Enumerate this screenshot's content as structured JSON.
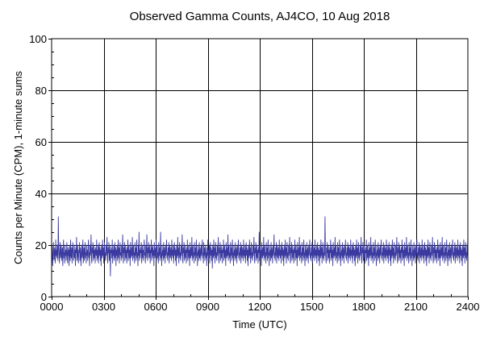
{
  "chart_data": {
    "type": "line",
    "title": "Observed Gamma Counts, AJ4CO, 10 Aug 2018",
    "xlabel": "Time (UTC)",
    "ylabel": "Counts per Minute (CPM), 1-minute sums",
    "xlim": [
      0,
      1440
    ],
    "ylim": [
      0,
      100
    ],
    "x_ticks": [
      {
        "value": 0,
        "label": "0000"
      },
      {
        "value": 180,
        "label": "0300"
      },
      {
        "value": 360,
        "label": "0600"
      },
      {
        "value": 540,
        "label": "0900"
      },
      {
        "value": 720,
        "label": "1200"
      },
      {
        "value": 900,
        "label": "1500"
      },
      {
        "value": 1080,
        "label": "1800"
      },
      {
        "value": 1260,
        "label": "2100"
      },
      {
        "value": 1440,
        "label": "2400"
      }
    ],
    "y_ticks": [
      {
        "value": 0,
        "label": "0"
      },
      {
        "value": 20,
        "label": "20"
      },
      {
        "value": 40,
        "label": "40"
      },
      {
        "value": 60,
        "label": "60"
      },
      {
        "value": 80,
        "label": "80"
      },
      {
        "value": 100,
        "label": "100"
      }
    ],
    "grid": true,
    "series": [
      {
        "color": "#3a3aa0",
        "x_start": 0,
        "x_step": 2,
        "values": [
          17,
          20,
          15,
          12,
          18,
          21,
          16,
          14,
          19,
          17,
          13,
          22,
          16,
          18,
          15,
          20,
          17,
          14,
          31,
          19,
          16,
          13,
          18,
          21,
          15,
          17,
          20,
          14,
          16,
          19,
          12,
          18,
          22,
          15,
          17,
          13,
          20,
          16,
          18,
          14,
          17,
          21,
          15,
          13,
          19,
          16,
          18,
          12,
          20,
          17,
          14,
          22,
          16,
          15,
          19,
          13,
          18,
          21,
          17,
          14,
          16,
          20,
          15,
          18,
          12,
          19,
          17,
          23,
          14,
          16,
          20,
          15,
          13,
          18,
          17,
          21,
          14,
          19,
          16,
          12,
          18,
          20,
          15,
          17,
          22,
          13,
          16,
          19,
          14,
          18,
          21,
          15,
          17,
          13,
          20,
          16,
          18,
          14,
          19,
          22,
          15,
          17,
          12,
          20,
          16,
          18,
          24,
          15,
          13,
          19,
          17,
          21,
          14,
          16,
          20,
          15,
          18,
          13,
          19,
          17,
          16,
          22,
          14,
          18,
          15,
          20,
          13,
          17,
          21,
          16,
          19,
          14,
          18,
          12,
          20,
          17,
          15,
          22,
          16,
          19,
          13,
          18,
          21,
          15,
          17,
          14,
          20,
          16,
          18,
          23,
          15,
          13,
          19,
          17,
          21,
          14,
          16,
          20,
          8,
          18,
          17,
          19,
          15,
          22,
          13,
          18,
          16,
          20,
          14,
          17,
          21,
          15,
          19,
          12,
          18,
          16,
          20,
          14,
          17,
          22,
          15,
          19,
          13,
          18,
          21,
          16,
          17,
          14,
          20,
          15,
          18,
          24,
          16,
          13,
          19,
          17,
          21,
          14,
          16,
          20,
          15,
          18,
          13,
          19,
          17,
          22,
          14,
          16,
          20,
          15,
          18,
          12,
          21,
          17,
          15,
          19,
          16,
          23,
          14,
          18,
          20,
          15,
          17,
          13,
          21,
          16,
          19,
          14,
          18,
          22,
          15,
          17,
          12,
          20,
          16,
          25,
          14,
          18,
          15,
          19,
          17,
          21,
          13,
          16,
          20,
          15,
          18,
          14,
          19,
          22,
          16,
          17,
          13,
          20,
          15,
          18,
          24,
          16,
          14,
          19,
          17,
          21,
          15,
          16,
          20,
          13,
          18,
          17,
          22,
          14,
          19,
          15,
          20,
          16,
          18,
          12,
          21,
          17,
          15,
          19,
          16,
          22,
          14,
          18,
          20,
          15,
          17,
          13,
          21,
          16,
          19,
          14,
          18,
          25,
          15,
          17,
          12,
          20,
          16,
          18,
          14,
          21,
          15,
          19,
          17,
          13,
          20,
          16,
          18,
          22,
          15,
          17,
          14,
          19,
          16,
          21,
          13,
          18,
          20,
          15,
          17,
          19,
          14,
          22,
          16,
          18,
          15,
          20,
          13,
          17,
          21,
          16,
          19,
          14,
          18,
          12,
          20,
          17,
          15,
          23,
          16,
          19,
          13,
          18,
          21,
          15,
          17,
          14,
          20,
          16,
          18,
          24,
          15,
          13,
          19,
          17,
          21,
          14,
          16,
          20,
          15,
          18,
          13,
          19,
          17,
          22,
          14,
          16,
          20,
          15,
          18,
          12,
          21,
          17,
          15,
          19,
          16,
          23,
          14,
          18,
          20,
          15,
          17,
          13,
          21,
          16,
          19,
          14,
          18,
          22,
          15,
          17,
          12,
          20,
          16,
          18,
          14,
          21,
          15,
          19,
          17,
          14,
          20,
          16,
          18,
          22,
          15,
          17,
          13,
          21,
          16,
          19,
          14,
          18,
          20,
          15,
          17,
          12,
          19,
          16,
          22,
          14,
          18,
          15,
          20,
          13,
          17,
          21,
          16,
          19,
          14,
          18,
          11,
          20,
          17,
          15,
          22,
          16,
          19,
          13,
          18,
          21,
          15,
          17,
          14,
          20,
          16,
          18,
          23,
          15,
          13,
          19,
          17,
          21,
          14,
          16,
          20,
          15,
          18,
          13,
          19,
          17,
          22,
          14,
          16,
          20,
          15,
          18,
          12,
          21,
          17,
          15,
          19,
          16,
          24,
          14,
          18,
          20,
          15,
          17,
          13,
          21,
          16,
          19,
          14,
          18,
          22,
          15,
          17,
          12,
          20,
          16,
          18,
          14,
          21,
          15,
          19,
          17,
          13,
          20,
          16,
          18,
          22,
          15,
          17,
          14,
          19,
          16,
          21,
          13,
          18,
          20,
          15,
          17,
          19,
          14,
          22,
          16,
          18,
          15,
          20,
          13,
          17,
          21,
          16,
          19,
          14,
          18,
          12,
          20,
          17,
          15,
          22,
          16,
          19,
          13,
          18,
          21,
          15,
          17,
          14,
          20,
          16,
          18,
          23,
          15,
          13,
          19,
          17,
          21,
          14,
          16,
          20,
          15,
          18,
          13,
          19,
          17,
          25,
          14,
          16,
          20,
          15,
          18,
          12,
          21,
          17,
          15,
          19,
          16,
          23,
          14,
          18,
          20,
          15,
          17,
          13,
          21,
          16,
          19,
          14,
          18,
          22,
          15,
          17,
          12,
          20,
          16,
          18,
          14,
          21,
          15,
          19,
          17,
          13,
          20,
          16,
          18,
          24,
          15,
          17,
          14,
          19,
          16,
          21,
          13,
          18,
          20,
          15,
          17,
          19,
          14,
          22,
          16,
          18,
          15,
          20,
          13,
          17,
          21,
          16,
          19,
          14,
          18,
          12,
          20,
          17,
          15,
          22,
          16,
          19,
          13,
          18,
          21,
          15,
          17,
          14,
          20,
          16,
          18,
          23,
          15,
          13,
          19,
          17,
          21,
          14,
          16,
          20,
          15,
          18,
          13,
          19,
          17,
          22,
          14,
          16,
          20,
          15,
          18,
          12,
          21,
          17,
          15,
          19,
          16,
          23,
          14,
          18,
          20,
          15,
          17,
          13,
          21,
          16,
          19,
          14,
          18,
          22,
          15,
          17,
          12,
          20,
          16,
          18,
          14,
          21,
          15,
          19,
          17,
          13,
          20,
          16,
          18,
          22,
          15,
          17,
          14,
          19,
          16,
          21,
          13,
          18,
          20,
          15,
          17,
          19,
          14,
          22,
          16,
          18,
          15,
          20,
          13,
          17,
          21,
          16,
          19,
          14,
          18,
          12,
          20,
          17,
          15,
          22,
          16,
          19,
          13,
          18,
          21,
          15,
          17,
          14,
          20,
          16,
          31,
          18,
          15,
          13,
          19,
          17,
          21,
          14,
          16,
          20,
          15,
          18,
          13,
          19,
          17,
          22,
          14,
          16,
          20,
          15,
          18,
          12,
          21,
          17,
          15,
          19,
          16,
          23,
          14,
          18,
          20,
          15,
          17,
          13,
          21,
          16,
          19,
          14,
          18,
          22,
          15,
          17,
          12,
          20,
          16,
          18,
          14,
          21,
          15,
          19,
          17,
          13,
          20,
          16,
          18,
          22,
          15,
          17,
          14,
          19,
          16,
          21,
          13,
          18,
          20,
          15,
          17,
          19,
          14,
          22,
          16,
          18,
          15,
          20,
          13,
          17,
          21,
          16,
          19,
          14,
          18,
          12,
          20,
          17,
          15,
          22,
          16,
          19,
          13,
          18,
          21,
          15,
          17,
          14,
          20,
          16,
          18,
          23,
          15,
          13,
          19,
          17,
          21,
          14,
          16,
          20,
          15,
          18,
          13,
          19,
          17,
          22,
          14,
          16,
          20,
          15,
          18,
          12,
          21,
          17,
          15,
          19,
          16,
          23,
          14,
          18,
          20,
          15,
          17,
          13,
          21,
          16,
          19,
          14,
          18,
          22,
          15,
          17,
          12,
          20,
          16,
          18,
          14,
          21,
          15,
          19,
          17,
          13,
          20,
          16,
          18,
          22,
          15,
          17,
          14,
          19,
          16,
          21,
          13,
          18,
          20,
          15,
          17,
          19,
          14,
          22,
          16,
          18,
          15,
          20,
          13,
          17,
          21,
          16,
          19,
          14,
          18,
          12,
          20,
          17,
          15,
          22,
          16,
          19,
          13,
          18,
          21,
          15,
          17,
          14,
          20,
          16,
          18,
          23,
          15,
          13,
          19,
          17,
          21,
          14,
          16,
          20,
          15,
          18,
          13,
          19,
          17,
          22,
          14,
          16,
          20,
          15,
          18,
          12,
          21,
          17,
          15,
          19,
          16,
          23,
          14,
          18,
          20,
          15,
          17,
          13,
          21,
          16,
          19,
          14,
          18,
          22,
          15,
          17,
          12,
          20,
          16,
          18,
          14,
          21,
          15,
          19,
          17,
          13,
          20,
          16,
          18,
          22,
          15,
          17,
          14,
          19,
          16,
          21,
          13,
          18,
          20,
          15,
          17,
          19,
          14,
          22,
          16,
          18,
          15,
          20,
          13,
          17,
          21,
          16,
          19,
          14,
          18,
          12,
          20,
          17,
          15,
          22,
          16,
          19,
          13,
          18,
          21,
          15,
          17,
          14,
          20,
          16,
          18,
          23,
          15,
          13,
          19,
          17,
          21,
          14,
          16,
          20,
          15,
          18,
          13,
          19,
          17,
          22,
          14,
          16,
          20,
          15,
          18,
          12,
          21,
          17,
          15,
          19,
          16,
          23,
          14,
          18,
          20,
          15,
          17,
          13,
          21,
          16,
          19,
          14,
          18,
          22,
          15,
          17,
          12,
          20,
          16,
          18,
          14,
          21,
          15,
          19,
          17,
          13,
          20,
          16,
          18,
          22,
          15,
          17,
          14,
          19,
          16,
          21,
          13,
          18,
          20,
          15,
          17,
          19,
          14,
          22,
          16,
          18,
          15,
          20,
          13,
          17,
          21,
          16,
          19,
          14,
          18,
          12,
          20,
          17,
          15,
          22,
          16,
          19,
          13,
          18,
          21,
          15,
          17,
          14,
          20,
          16,
          24
        ]
      }
    ]
  }
}
